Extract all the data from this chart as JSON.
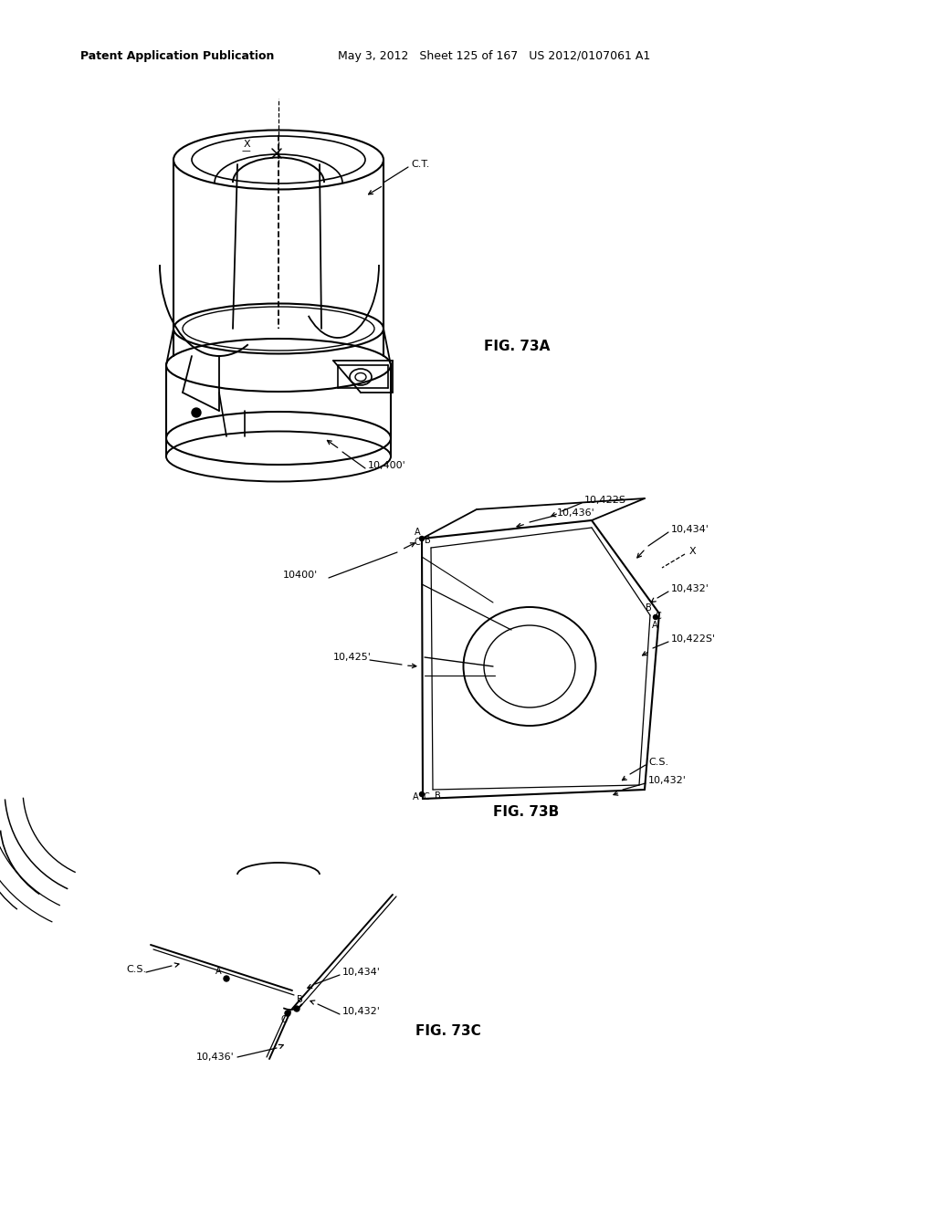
{
  "background_color": "#ffffff",
  "header_left": "Patent Application Publication",
  "header_right": "May 3, 2012   Sheet 125 of 167   US 2012/0107061 A1",
  "fig73a_label": "FIG. 73A",
  "fig73b_label": "FIG. 73B",
  "fig73c_label": "FIG. 73C",
  "lc": "#000000",
  "lw": 1.3
}
